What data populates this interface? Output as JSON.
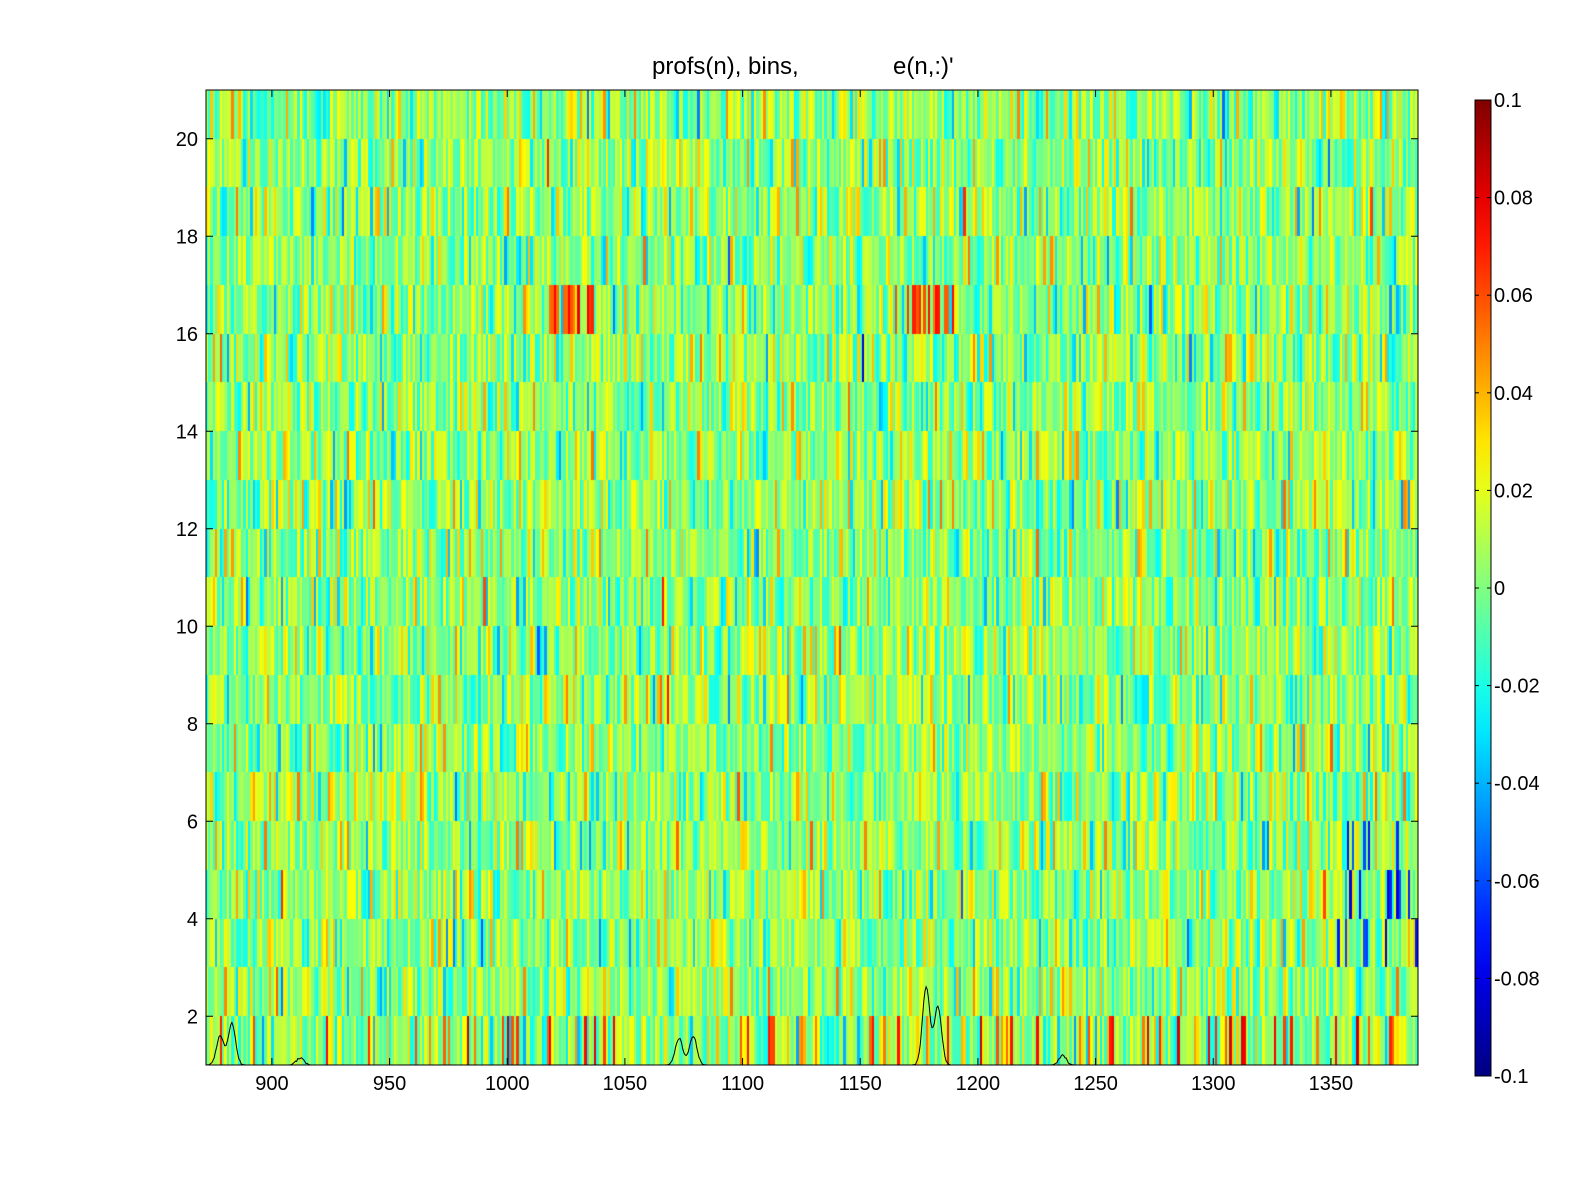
{
  "chart_data": {
    "type": "heatmap",
    "title_parts": [
      "profs(n), bins,",
      "e(n,:)'"
    ],
    "xlabel": "",
    "ylabel": "",
    "xlim": [
      872,
      1387
    ],
    "ylim": [
      1,
      21
    ],
    "x_ticks": [
      900,
      950,
      1000,
      1050,
      1100,
      1150,
      1200,
      1250,
      1300,
      1350
    ],
    "y_ticks": [
      2,
      4,
      6,
      8,
      10,
      12,
      14,
      16,
      18,
      20
    ],
    "rows": 20,
    "columns_per_row": 515,
    "colormap": "jet",
    "color_range": [
      -0.1,
      0.1
    ],
    "colorbar_ticks": [
      "0.1",
      "0.08",
      "0.06",
      "0.04",
      "0.02",
      "0",
      "-0.02",
      "-0.04",
      "-0.06",
      "-0.08",
      "-0.1"
    ],
    "overlay_line": {
      "color": "#000000",
      "peaks": [
        {
          "x": 878,
          "y": 1.6
        },
        {
          "x": 883,
          "y": 1.85
        },
        {
          "x": 912,
          "y": 1.15
        },
        {
          "x": 1073,
          "y": 1.55
        },
        {
          "x": 1079,
          "y": 1.6
        },
        {
          "x": 1178,
          "y": 2.6
        },
        {
          "x": 1183,
          "y": 2.2
        },
        {
          "x": 1236,
          "y": 1.2
        }
      ]
    }
  }
}
